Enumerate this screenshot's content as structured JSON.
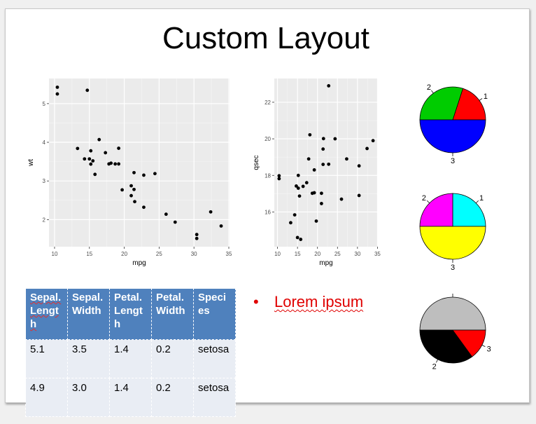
{
  "slide": {
    "title": "Custom Layout"
  },
  "bullet": {
    "marker": "•",
    "text": "Lorem ipsum"
  },
  "table": {
    "headers": [
      "Sepal.Length",
      "Sepal.Width",
      "Petal.Length",
      "Petal.Width",
      "Species"
    ],
    "rows": [
      [
        "5.1",
        "3.5",
        "1.4",
        "0.2",
        "setosa"
      ],
      [
        "4.9",
        "3.0",
        "1.4",
        "0.2",
        "setosa"
      ]
    ]
  },
  "chart_data": [
    {
      "type": "scatter",
      "xlabel": "mpg",
      "ylabel": "wt",
      "xlim": [
        9.2,
        35.1
      ],
      "ylim": [
        1.3,
        5.65
      ],
      "xticks": [
        "10",
        "15",
        "20",
        "25",
        "30",
        "35"
      ],
      "yticks": [
        "2",
        "3",
        "4",
        "5"
      ],
      "background": "#ebebeb",
      "grid": true,
      "x": [
        21.0,
        21.0,
        22.8,
        21.4,
        18.7,
        18.1,
        14.3,
        24.4,
        22.8,
        19.2,
        17.8,
        16.4,
        17.3,
        15.2,
        10.4,
        10.4,
        14.7,
        32.4,
        30.4,
        33.9,
        21.5,
        15.5,
        15.2,
        13.3,
        19.2,
        27.3,
        26.0,
        30.4,
        15.8,
        19.7,
        15.0,
        21.4
      ],
      "y": [
        2.62,
        2.875,
        2.32,
        3.215,
        3.44,
        3.46,
        3.57,
        3.19,
        3.15,
        3.44,
        3.44,
        4.07,
        3.73,
        3.78,
        5.25,
        5.424,
        5.345,
        2.2,
        1.615,
        1.835,
        2.465,
        3.52,
        3.435,
        3.84,
        3.845,
        1.935,
        2.14,
        1.513,
        3.17,
        2.77,
        3.57,
        2.78
      ]
    },
    {
      "type": "scatter",
      "xlabel": "mpg",
      "ylabel": "qsec",
      "xlim": [
        9.2,
        35.1
      ],
      "ylim": [
        14.1,
        23.3
      ],
      "xticks": [
        "10",
        "15",
        "20",
        "25",
        "30",
        "35"
      ],
      "yticks": [
        "16",
        "18",
        "20",
        "22"
      ],
      "background": "#ebebeb",
      "grid": true,
      "x": [
        21.0,
        21.0,
        22.8,
        21.4,
        18.7,
        18.1,
        14.3,
        24.4,
        22.8,
        19.2,
        17.8,
        16.4,
        17.3,
        15.2,
        10.4,
        10.4,
        14.7,
        32.4,
        30.4,
        33.9,
        21.5,
        15.5,
        15.2,
        13.3,
        19.2,
        27.3,
        26.0,
        30.4,
        15.8,
        19.7,
        15.0,
        21.4
      ],
      "y": [
        16.46,
        17.02,
        18.61,
        19.44,
        17.02,
        20.22,
        15.84,
        20.0,
        22.9,
        18.3,
        18.9,
        17.4,
        17.6,
        18.0,
        17.98,
        17.82,
        17.42,
        19.47,
        18.52,
        19.9,
        20.01,
        16.87,
        17.3,
        15.41,
        17.05,
        18.9,
        16.7,
        16.9,
        14.5,
        15.5,
        14.6,
        18.6
      ]
    },
    {
      "type": "pie",
      "labels": [
        "1",
        "2",
        "3"
      ],
      "values": [
        0.2,
        0.3,
        0.5
      ],
      "colors": [
        "#ff0000",
        "#00cc00",
        "#0000ff"
      ]
    },
    {
      "type": "pie",
      "labels": [
        "1",
        "2",
        "3"
      ],
      "values": [
        0.25,
        0.25,
        0.5
      ],
      "colors": [
        "#00ffff",
        "#ff00ff",
        "#ffff00"
      ]
    },
    {
      "type": "pie",
      "labels": [
        "1",
        "2",
        "3"
      ],
      "values": [
        0.5,
        0.35,
        0.15
      ],
      "colors": [
        "#bebebe",
        "#000000",
        "#ff0000"
      ]
    }
  ]
}
